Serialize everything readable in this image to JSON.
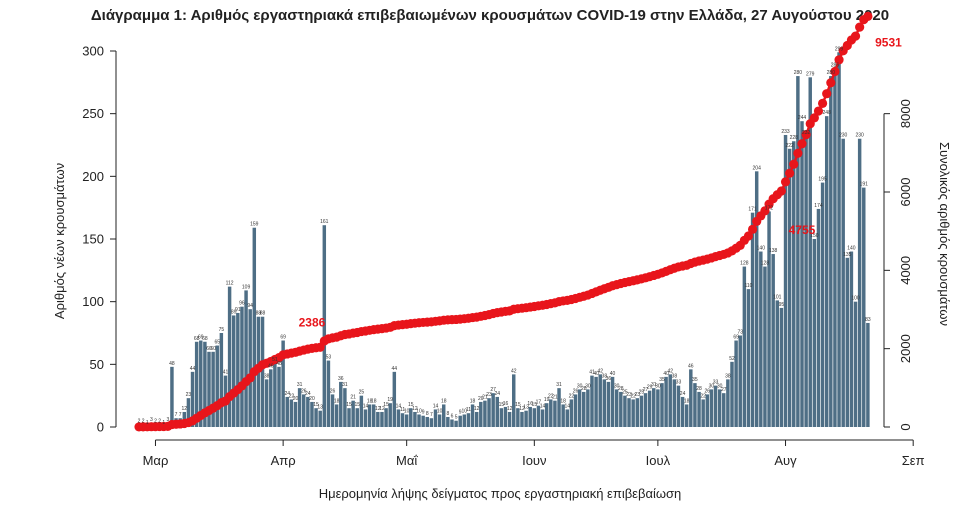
{
  "chart_data": {
    "type": "bar",
    "title": "Διάγραμμα 1: Αριθμός εργαστηριακά επιβεβαιωμένων κρουσμάτων COVID-19 στην Ελλάδα, 27 Αυγούστου 2020",
    "xlabel": "Ημερομηνία λήψης δείγματος προς εργαστηριακή επιβεβαίωση",
    "ylabel": "Αριθμός νέων κρουσμάτων",
    "y2label": "Συνολικός αριθμός κρουσμάτων",
    "ylim": [
      0,
      300
    ],
    "y2lim": [
      0,
      9600
    ],
    "yticks": [
      0,
      50,
      100,
      150,
      200,
      250,
      300
    ],
    "y2ticks": [
      0,
      2000,
      4000,
      6000,
      8000
    ],
    "x_start": "2020-02-26",
    "month_ticks": [
      {
        "label": "Μαρ",
        "date": "2020-03-01"
      },
      {
        "label": "Απρ",
        "date": "2020-04-01"
      },
      {
        "label": "Μαΐ",
        "date": "2020-05-01"
      },
      {
        "label": "Ιουν",
        "date": "2020-06-01"
      },
      {
        "label": "Ιουλ",
        "date": "2020-07-01"
      },
      {
        "label": "Αυγ",
        "date": "2020-08-01"
      },
      {
        "label": "Σεπ",
        "date": "2020-09-01"
      }
    ],
    "daily_cases": [
      2,
      2,
      1,
      3,
      2,
      2,
      1,
      3,
      48,
      7,
      7,
      12,
      23,
      44,
      68,
      69,
      68,
      60,
      60,
      65,
      75,
      41,
      112,
      89,
      91,
      96,
      109,
      94,
      159,
      88,
      88,
      38,
      46,
      51,
      48,
      69,
      24,
      22,
      20,
      31,
      26,
      24,
      20,
      15,
      13,
      161,
      53,
      26,
      18,
      36,
      31,
      15,
      21,
      15,
      25,
      14,
      18,
      18,
      12,
      12,
      15,
      19,
      44,
      14,
      11,
      10,
      15,
      12,
      10,
      9,
      8,
      7,
      14,
      10,
      18,
      8,
      6,
      5,
      9,
      10,
      11,
      18,
      12,
      20,
      21,
      23,
      27,
      24,
      15,
      16,
      12,
      42,
      15,
      12,
      13,
      16,
      15,
      17,
      14,
      19,
      22,
      21,
      31,
      18,
      14,
      22,
      26,
      30,
      28,
      30,
      41,
      40,
      42,
      38,
      36,
      40,
      30,
      28,
      25,
      23,
      22,
      23,
      25,
      27,
      29,
      31,
      30,
      35,
      40,
      42,
      38,
      33,
      24,
      18,
      46,
      35,
      28,
      22,
      26,
      30,
      33,
      30,
      27,
      38,
      52,
      69,
      73,
      128,
      110,
      171,
      204,
      140,
      128,
      172,
      138,
      101,
      95,
      233,
      222,
      228,
      280,
      244,
      232,
      279,
      150,
      174,
      195,
      248,
      280,
      286,
      299,
      230,
      135,
      140,
      100,
      230,
      191,
      83
    ],
    "cumulative_labels": [
      {
        "date": "2020-04-08",
        "value": 2386
      },
      {
        "date": "2020-08-05",
        "value": 4755
      },
      {
        "date": "2020-08-26",
        "value": 9531
      }
    ],
    "colors": {
      "bars": "#4e6e85",
      "cumulative": "#e8151b",
      "axis": "#222222"
    }
  }
}
